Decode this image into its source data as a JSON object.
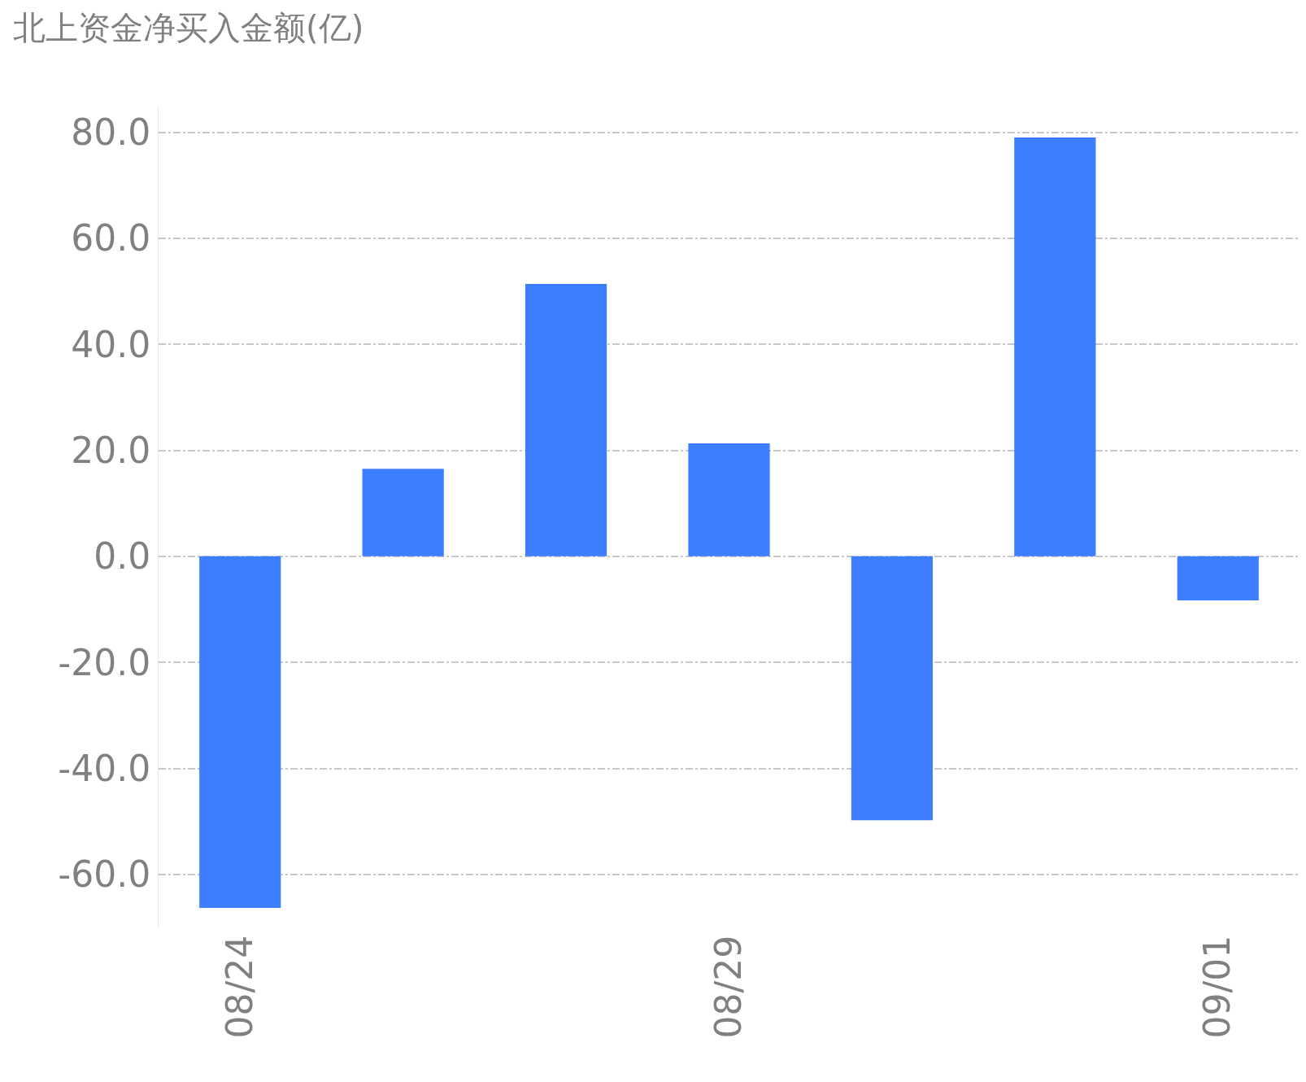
{
  "chart_data": {
    "type": "bar",
    "title": "北上资金净买入金额(亿)",
    "categories": [
      "08/24",
      null,
      null,
      "08/29",
      null,
      null,
      "09/01"
    ],
    "values": [
      -66.3,
      16.5,
      51.4,
      21.3,
      -49.8,
      79.0,
      -8.3
    ],
    "color": "#3d7eff",
    "ylim": [
      -70,
      85
    ],
    "yticks": [
      {
        "value": -60,
        "label": "-60.0"
      },
      {
        "value": -40,
        "label": "-40.0"
      },
      {
        "value": -20,
        "label": "-20.0"
      },
      {
        "value": 0,
        "label": "0.0"
      },
      {
        "value": 20,
        "label": "20.0"
      },
      {
        "value": 40,
        "label": "40.0"
      },
      {
        "value": 60,
        "label": "60.0"
      },
      {
        "value": 80,
        "label": "80.0"
      }
    ],
    "grid": "y"
  }
}
